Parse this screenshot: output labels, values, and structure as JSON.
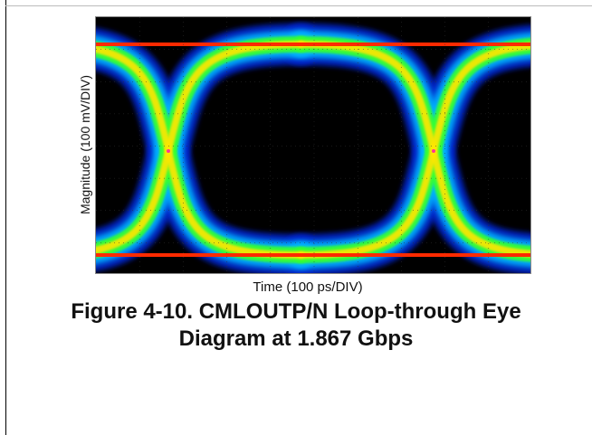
{
  "figure": {
    "y_axis_label": "Magnitude (100 mV/DIV)",
    "x_axis_label": "Time (100 ps/DIV)",
    "caption_line1": "Figure 4-10. CMLOUTP/N Loop-through Eye",
    "caption_line2": "Diagram at 1.867 Gbps"
  },
  "colors": {
    "background": "#000000",
    "hot": "#ff2a00",
    "warm": "#ffe600",
    "mid": "#33ff33",
    "cool": "#00b4ff",
    "cold": "#0022cc",
    "marker": "#ff3399"
  }
}
